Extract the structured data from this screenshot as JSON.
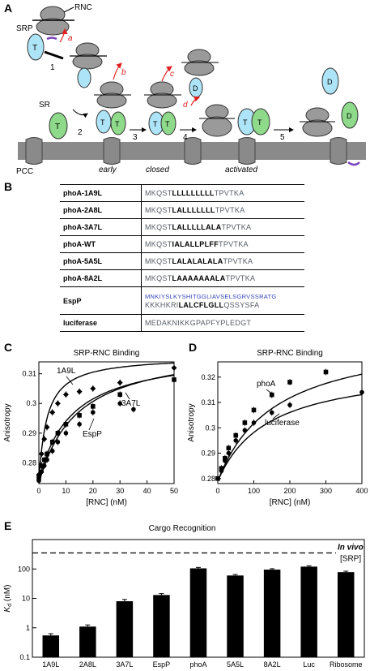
{
  "panels": [
    "A",
    "B",
    "C",
    "D",
    "E"
  ],
  "panel_a": {
    "labels": {
      "rnc": "RNC",
      "srp": "SRP",
      "sr": "SR",
      "pcc": "PCC",
      "t": "T",
      "d": "D",
      "step1": "1",
      "step2": "2",
      "step3": "3",
      "step4": "4",
      "step5": "5",
      "a": "a",
      "b": "b",
      "c": "c",
      "d_arrow": "d",
      "early": "early",
      "closed": "closed",
      "activated": "activated"
    },
    "colors": {
      "srp": "#aee4f7",
      "sr": "#8ed98a",
      "ribosome": "#9a9a9a",
      "membrane": "#8a8a8a",
      "arrow": "#e02020",
      "signal": "#7a44bb"
    }
  },
  "panel_b": {
    "rows": [
      {
        "name": "phoA-1A9L",
        "pre": "MKQST",
        "core": "LLLLLLLLL",
        "post": "TPVTKA"
      },
      {
        "name": "phoA-2A8L",
        "pre": "MKQST",
        "core": "LALLLLLLL",
        "post": "TPVTKA"
      },
      {
        "name": "phoA-3A7L",
        "pre": "MKQST",
        "core": "LALLLLLALA",
        "post": "TPVTKA"
      },
      {
        "name": "phoA-WT",
        "pre": "MKQST",
        "core": "IALALLPLFF",
        "post": "TPVTKA"
      },
      {
        "name": "phoA-5A5L",
        "pre": "MKQST",
        "core": "LALALALALA",
        "post": "TPVTKA"
      },
      {
        "name": "phoA-8A2L",
        "pre": "MKQST",
        "core": "LAAAAAAALA",
        "post": "TPVTKA"
      },
      {
        "name": "EspP",
        "line1": "MNKIYSLKYSHITGGLIAVSELSGRVSSRATG",
        "pre": "KKKHKRI",
        "core": "LALCFLGLL",
        "post": "QSSYSFA"
      },
      {
        "name": "luciferase",
        "pre": "MEDAKNIKKGPAPFYPLEDGT",
        "core": "",
        "post": ""
      }
    ]
  },
  "chart_data": [
    {
      "id": "C",
      "type": "scatter",
      "title": "SRP-RNC Binding",
      "xlabel": "[RNC] (nM)",
      "ylabel": "Anisotropy",
      "xlim": [
        0,
        50
      ],
      "ylim": [
        0.273,
        0.314
      ],
      "xticks": [
        0,
        10,
        20,
        30,
        40,
        50
      ],
      "yticks": [
        0.28,
        0.29,
        0.3,
        0.31
      ],
      "series": [
        {
          "name": "1A9L",
          "marker": "diamond",
          "x": [
            0,
            1,
            2,
            3,
            5,
            7,
            10,
            15,
            20,
            30,
            50
          ],
          "y": [
            0.276,
            0.283,
            0.288,
            0.292,
            0.297,
            0.3,
            0.303,
            0.304,
            0.305,
            0.307,
            0.312
          ]
        },
        {
          "name": "EspP",
          "marker": "square",
          "x": [
            0,
            1,
            2,
            3,
            5,
            7,
            10,
            15,
            20,
            30,
            50
          ],
          "y": [
            0.275,
            0.279,
            0.281,
            0.283,
            0.287,
            0.29,
            0.293,
            0.296,
            0.299,
            0.303,
            0.308
          ]
        },
        {
          "name": "3A7L",
          "marker": "circle",
          "x": [
            0,
            1,
            2,
            3,
            5,
            7,
            10,
            15,
            20,
            30,
            35
          ],
          "y": [
            0.274,
            0.277,
            0.279,
            0.281,
            0.284,
            0.287,
            0.29,
            0.293,
            0.297,
            0.3,
            0.298
          ]
        }
      ]
    },
    {
      "id": "D",
      "type": "scatter",
      "title": "SRP-RNC Binding",
      "xlabel": "[RNC] (nM)",
      "ylabel": "Anisotropy",
      "xlim": [
        0,
        400
      ],
      "ylim": [
        0.278,
        0.326
      ],
      "xticks": [
        0,
        100,
        200,
        300,
        400
      ],
      "yticks": [
        0.28,
        0.29,
        0.3,
        0.31,
        0.32
      ],
      "series": [
        {
          "name": "phoA",
          "marker": "square",
          "x": [
            0,
            10,
            20,
            30,
            50,
            75,
            100,
            150,
            200,
            300
          ],
          "y": [
            0.28,
            0.284,
            0.288,
            0.292,
            0.297,
            0.302,
            0.307,
            0.313,
            0.318,
            0.322
          ]
        },
        {
          "name": "luciferase",
          "marker": "circle",
          "x": [
            0,
            10,
            20,
            30,
            50,
            75,
            100,
            150,
            200,
            400
          ],
          "y": [
            0.28,
            0.283,
            0.287,
            0.29,
            0.295,
            0.299,
            0.302,
            0.306,
            0.309,
            0.314
          ]
        }
      ]
    },
    {
      "id": "E",
      "type": "bar",
      "title": "Cargo Recognition",
      "ylabel": "Kd (nM)",
      "ylabel_main": "K",
      "ylabel_sub": "d",
      "ylabel_unit": "(nM)",
      "log_scale": true,
      "ylim": [
        0.1,
        1000
      ],
      "yticks": [
        0.1,
        1,
        10,
        100
      ],
      "categories": [
        "1A9L",
        "2A8L",
        "3A7L",
        "EspP",
        "phoA",
        "5A5L",
        "8A2L",
        "Luc",
        "Ribosome"
      ],
      "values": [
        0.55,
        1.1,
        8,
        13,
        105,
        60,
        95,
        120,
        78
      ],
      "errors": [
        0.08,
        0.15,
        1.2,
        1.5,
        8,
        5,
        7,
        9,
        6
      ],
      "reference_line": {
        "value": 350,
        "label_line1": "In vivo",
        "label_line2": "[SRP]"
      }
    }
  ]
}
